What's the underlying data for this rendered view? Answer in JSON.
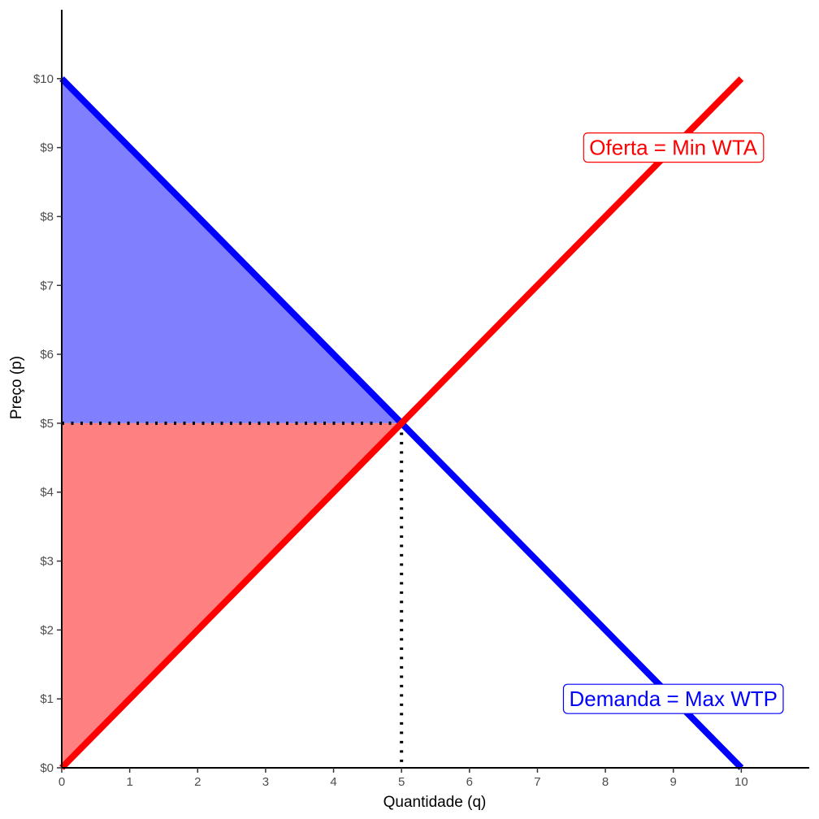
{
  "chart_data": {
    "type": "line",
    "title": "",
    "xlabel": "Quantidade (q)",
    "ylabel": "Preço (p)",
    "xlim": [
      0,
      11
    ],
    "ylim": [
      0,
      11
    ],
    "x_ticks": [
      0,
      1,
      2,
      3,
      4,
      5,
      6,
      7,
      8,
      9,
      10
    ],
    "x_tick_labels": [
      "0",
      "1",
      "2",
      "3",
      "4",
      "5",
      "6",
      "7",
      "8",
      "9",
      "10"
    ],
    "y_ticks": [
      0,
      1,
      2,
      3,
      4,
      5,
      6,
      7,
      8,
      9,
      10
    ],
    "y_tick_labels": [
      "$0",
      "$1",
      "$2",
      "$3",
      "$4",
      "$5",
      "$6",
      "$7",
      "$8",
      "$9",
      "$10"
    ],
    "grid": false,
    "series": [
      {
        "name": "Demanda = Max WTP",
        "color": "#0000ff",
        "points": [
          [
            0,
            10
          ],
          [
            10,
            0
          ]
        ]
      },
      {
        "name": "Oferta = Min WTA",
        "color": "#ff0000",
        "points": [
          [
            0,
            0
          ],
          [
            10,
            10
          ]
        ]
      }
    ],
    "labels": [
      {
        "text": "Oferta = Min WTA",
        "x": 9,
        "y": 9,
        "color": "#ff0000"
      },
      {
        "text": "Demanda = Max WTP",
        "x": 9,
        "y": 1,
        "color": "#0000ff"
      }
    ],
    "equilibrium": {
      "q": 5,
      "p": 5
    },
    "shaded_areas": [
      {
        "name": "consumer surplus",
        "color": "#8080ff",
        "polygon": [
          [
            0,
            5
          ],
          [
            0,
            10
          ],
          [
            5,
            5
          ]
        ]
      },
      {
        "name": "producer surplus",
        "color": "#ff8080",
        "polygon": [
          [
            0,
            0
          ],
          [
            0,
            5
          ],
          [
            5,
            5
          ]
        ]
      }
    ]
  }
}
